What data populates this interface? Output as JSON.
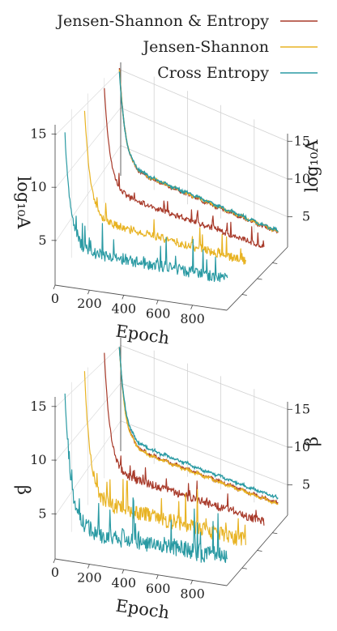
{
  "legend": {
    "entries": [
      {
        "label": "Jensen-Shannon & Entropy",
        "color": "#a83a2a"
      },
      {
        "label": "Jensen-Shannon",
        "color": "#e8b323"
      },
      {
        "label": "Cross Entropy",
        "color": "#2a9aa3"
      }
    ]
  },
  "chart_data": [
    {
      "type": "line",
      "projection": "3d",
      "xlabel": "Epoch",
      "zlabel_left": "log₁₀A",
      "zlabel_right": "log₁₀A",
      "x_ticks": [
        "0",
        "200",
        "400",
        "600",
        "800"
      ],
      "z_ticks_left": [
        "5",
        "10",
        "15"
      ],
      "z_ticks_right": [
        "5",
        "10",
        "15"
      ],
      "xlim": [
        0,
        1000
      ],
      "zlim": [
        1,
        16
      ],
      "grid": true,
      "legend_position": "top-right",
      "series": [
        {
          "name": "Jensen-Shannon & Entropy",
          "color": "#a83a2a",
          "depth": 0.25,
          "start": 14.8,
          "end": 2.6,
          "decay": 35,
          "noise": 0.7
        },
        {
          "name": "Jensen-Shannon",
          "color": "#e8b323",
          "depth": 0.55,
          "start": 14.5,
          "end": 3.0,
          "decay": 35,
          "noise": 0.9
        },
        {
          "name": "Cross Entropy",
          "color": "#2a9aa3",
          "depth": 0.85,
          "start": 14.0,
          "end": 3.0,
          "decay": 35,
          "noise": 1.1
        }
      ],
      "back_series": [
        {
          "color": "#a83a2a",
          "start": 15.5,
          "end": 2.6
        },
        {
          "color": "#e8b323",
          "start": 15.3,
          "end": 2.7
        },
        {
          "color": "#2a9aa3",
          "start": 15.0,
          "end": 2.8
        }
      ]
    },
    {
      "type": "line",
      "projection": "3d",
      "xlabel": "Epoch",
      "zlabel_left": "β",
      "zlabel_right": "β",
      "x_ticks": [
        "0",
        "200",
        "400",
        "600",
        "800"
      ],
      "z_ticks_left": [
        "5",
        "10",
        "15"
      ],
      "z_ticks_right": [
        "5",
        "10",
        "15"
      ],
      "xlim": [
        0,
        1000
      ],
      "zlim": [
        1,
        16
      ],
      "grid": true,
      "series": [
        {
          "name": "Jensen-Shannon & Entropy",
          "color": "#a83a2a",
          "depth": 0.25,
          "start": 16.0,
          "end": 2.0,
          "decay": 35,
          "noise": 1.0
        },
        {
          "name": "Jensen-Shannon",
          "color": "#e8b323",
          "depth": 0.55,
          "start": 15.5,
          "end": 2.2,
          "decay": 35,
          "noise": 1.6
        },
        {
          "name": "Cross Entropy",
          "color": "#2a9aa3",
          "depth": 0.85,
          "start": 15.5,
          "end": 2.5,
          "decay": 35,
          "noise": 1.8
        }
      ],
      "back_series": [
        {
          "color": "#a83a2a",
          "start": 15.0,
          "end": 2.3
        },
        {
          "color": "#e8b323",
          "start": 15.0,
          "end": 2.2
        },
        {
          "color": "#2a9aa3",
          "start": 15.0,
          "end": 3.0
        }
      ]
    }
  ]
}
